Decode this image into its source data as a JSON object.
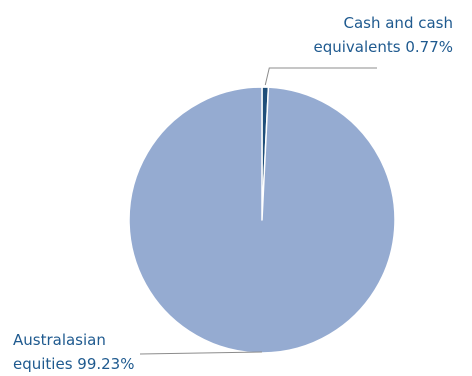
{
  "chart_data": {
    "type": "pie",
    "title": "",
    "categories": [
      "Cash and cash equivalents",
      "Australasian equities"
    ],
    "values": [
      0.77,
      99.23
    ],
    "unit": "%",
    "colors": [
      "#1f4e79",
      "#95abd1"
    ],
    "slice_border": "#ffffff",
    "leader_line": "#8c8c8c",
    "label_color": "#1f5a8f",
    "legend": "none",
    "data_labels": [
      {
        "lines": [
          "Cash and cash",
          "equivalents 0.77%"
        ]
      },
      {
        "lines": [
          "Australasian",
          "equities 99.23%"
        ]
      }
    ]
  }
}
